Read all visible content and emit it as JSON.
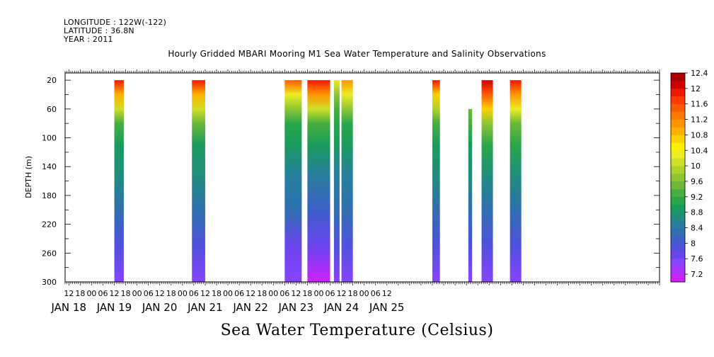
{
  "header": {
    "longitude": "LONGITUDE : 122W(-122)",
    "latitude": "LATITUDE : 36.8N",
    "year": "YEAR : 2011"
  },
  "chart_data": {
    "type": "heatmap",
    "title": "Hourly Gridded MBARI Mooring M1 Sea Water Temperature and Salinity Observations",
    "xlabel": "Sea Water Temperature (Celsius)",
    "ylabel": "DEPTH (m)",
    "x_unit": "hours since JAN 18 00:00",
    "xlim": [
      10,
      324
    ],
    "ylim": [
      300,
      10
    ],
    "y_ticks": [
      20,
      60,
      100,
      140,
      180,
      220,
      260,
      300
    ],
    "x_hour_ticks": [
      "12",
      "18",
      "00",
      "06",
      "12",
      "18",
      "00",
      "06",
      "12",
      "18",
      "00",
      "06",
      "12",
      "18",
      "00",
      "06",
      "12",
      "18",
      "00",
      "06",
      "12",
      "18",
      "00",
      "06",
      "12",
      "18",
      "00",
      "06",
      "12"
    ],
    "date_labels": [
      "JAN 18",
      "JAN 19",
      "JAN 20",
      "JAN 21",
      "JAN 22",
      "JAN 23",
      "JAN 24",
      "JAN 25"
    ],
    "colorbar": {
      "levels": [
        7.2,
        7.4,
        7.6,
        7.8,
        8.0,
        8.2,
        8.4,
        8.6,
        8.8,
        9.0,
        9.2,
        9.4,
        9.6,
        9.8,
        10.0,
        10.2,
        10.4,
        10.6,
        10.8,
        11.0,
        11.2,
        11.4,
        11.6,
        11.8,
        12.0,
        12.2,
        12.4,
        12.6
      ],
      "labels": [
        "7.2",
        "7.6",
        "8",
        "8.4",
        "8.8",
        "9.2",
        "9.6",
        "10",
        "10.4",
        "10.8",
        "11.2",
        "11.6",
        "12",
        "12.4"
      ],
      "colors": [
        "#cc22ff",
        "#aa33ff",
        "#8844ff",
        "#6a44ee",
        "#5050dd",
        "#3c5fc8",
        "#2f6fb0",
        "#27809b",
        "#1f8f7a",
        "#1a9b5e",
        "#2aa64a",
        "#48ae3e",
        "#6cb838",
        "#8ec534",
        "#b0d22c",
        "#d0df28",
        "#ecec22",
        "#fff000",
        "#ffd000",
        "#ffb000",
        "#ff9500",
        "#ff7800",
        "#ff5a00",
        "#ff3a00",
        "#f01800",
        "#d00000",
        "#a80000"
      ]
    },
    "series": [
      {
        "t_start": 132,
        "t_end": 134,
        "min_depth": 20,
        "profile": [
          {
            "d": 20,
            "v": 11.9
          },
          {
            "d": 40,
            "v": 11.0
          },
          {
            "d": 60,
            "v": 10.1
          },
          {
            "d": 80,
            "v": 9.4
          },
          {
            "d": 110,
            "v": 9.0
          },
          {
            "d": 150,
            "v": 8.8
          },
          {
            "d": 200,
            "v": 8.5
          },
          {
            "d": 250,
            "v": 8.0
          },
          {
            "d": 300,
            "v": 7.7
          }
        ]
      },
      {
        "t_start": 36,
        "t_end": 41,
        "min_depth": 20,
        "profile": [
          {
            "d": 20,
            "v": 12.0
          },
          {
            "d": 40,
            "v": 11.0
          },
          {
            "d": 60,
            "v": 10.2
          },
          {
            "d": 80,
            "v": 9.5
          },
          {
            "d": 110,
            "v": 9.1
          },
          {
            "d": 150,
            "v": 8.8
          },
          {
            "d": 200,
            "v": 8.5
          },
          {
            "d": 250,
            "v": 8.0
          },
          {
            "d": 300,
            "v": 7.7
          }
        ]
      },
      {
        "t_start": 77,
        "t_end": 84,
        "min_depth": 20,
        "profile": [
          {
            "d": 20,
            "v": 12.0
          },
          {
            "d": 40,
            "v": 11.1
          },
          {
            "d": 60,
            "v": 10.3
          },
          {
            "d": 80,
            "v": 9.6
          },
          {
            "d": 110,
            "v": 9.1
          },
          {
            "d": 150,
            "v": 8.8
          },
          {
            "d": 200,
            "v": 8.5
          },
          {
            "d": 250,
            "v": 8.0
          },
          {
            "d": 300,
            "v": 7.7
          }
        ]
      },
      {
        "t_start": 126,
        "t_end": 135,
        "min_depth": 20,
        "profile": [
          {
            "d": 20,
            "v": 11.6
          },
          {
            "d": 40,
            "v": 10.5
          },
          {
            "d": 60,
            "v": 9.8
          },
          {
            "d": 80,
            "v": 9.3
          },
          {
            "d": 110,
            "v": 9.0
          },
          {
            "d": 150,
            "v": 8.7
          },
          {
            "d": 200,
            "v": 8.4
          },
          {
            "d": 250,
            "v": 7.9
          },
          {
            "d": 300,
            "v": 7.6
          }
        ]
      },
      {
        "t_start": 138,
        "t_end": 150,
        "min_depth": 20,
        "profile": [
          {
            "d": 20,
            "v": 12.1
          },
          {
            "d": 40,
            "v": 11.3
          },
          {
            "d": 60,
            "v": 10.2
          },
          {
            "d": 80,
            "v": 9.5
          },
          {
            "d": 110,
            "v": 9.0
          },
          {
            "d": 150,
            "v": 8.6
          },
          {
            "d": 200,
            "v": 8.2
          },
          {
            "d": 250,
            "v": 7.8
          },
          {
            "d": 300,
            "v": 7.3
          }
        ]
      },
      {
        "t_start": 152,
        "t_end": 155,
        "min_depth": 20,
        "profile": [
          {
            "d": 20,
            "v": 10.5
          },
          {
            "d": 40,
            "v": 9.9
          },
          {
            "d": 60,
            "v": 9.5
          },
          {
            "d": 80,
            "v": 9.2
          },
          {
            "d": 110,
            "v": 9.0
          },
          {
            "d": 150,
            "v": 8.7
          },
          {
            "d": 200,
            "v": 8.4
          },
          {
            "d": 250,
            "v": 8.0
          },
          {
            "d": 300,
            "v": 7.6
          }
        ]
      },
      {
        "t_start": 156,
        "t_end": 162,
        "min_depth": 20,
        "profile": [
          {
            "d": 20,
            "v": 11.2
          },
          {
            "d": 40,
            "v": 10.4
          },
          {
            "d": 60,
            "v": 9.8
          },
          {
            "d": 80,
            "v": 9.3
          },
          {
            "d": 110,
            "v": 9.0
          },
          {
            "d": 150,
            "v": 8.7
          },
          {
            "d": 200,
            "v": 8.4
          },
          {
            "d": 250,
            "v": 8.0
          },
          {
            "d": 300,
            "v": 7.6
          }
        ]
      },
      {
        "t_start": 204,
        "t_end": 208,
        "min_depth": 20,
        "profile": [
          {
            "d": 20,
            "v": 12.0
          },
          {
            "d": 40,
            "v": 10.9
          },
          {
            "d": 60,
            "v": 10.1
          },
          {
            "d": 80,
            "v": 9.5
          },
          {
            "d": 110,
            "v": 9.0
          },
          {
            "d": 150,
            "v": 8.8
          },
          {
            "d": 200,
            "v": 8.5
          },
          {
            "d": 250,
            "v": 8.0
          },
          {
            "d": 300,
            "v": 7.7
          }
        ]
      },
      {
        "t_start": 223,
        "t_end": 225,
        "min_depth": 60,
        "profile": [
          {
            "d": 60,
            "v": 9.7
          },
          {
            "d": 80,
            "v": 9.4
          },
          {
            "d": 110,
            "v": 9.0
          },
          {
            "d": 150,
            "v": 8.8
          },
          {
            "d": 200,
            "v": 8.5
          },
          {
            "d": 250,
            "v": 8.0
          },
          {
            "d": 300,
            "v": 7.7
          }
        ]
      },
      {
        "t_start": 230,
        "t_end": 236,
        "min_depth": 20,
        "profile": [
          {
            "d": 20,
            "v": 12.2
          },
          {
            "d": 40,
            "v": 11.6
          },
          {
            "d": 60,
            "v": 10.8
          },
          {
            "d": 80,
            "v": 9.9
          },
          {
            "d": 110,
            "v": 9.2
          },
          {
            "d": 150,
            "v": 8.9
          },
          {
            "d": 200,
            "v": 8.5
          },
          {
            "d": 250,
            "v": 8.0
          },
          {
            "d": 300,
            "v": 7.7
          }
        ]
      },
      {
        "t_start": 245,
        "t_end": 251,
        "min_depth": 20,
        "profile": [
          {
            "d": 20,
            "v": 12.1
          },
          {
            "d": 40,
            "v": 11.3
          },
          {
            "d": 60,
            "v": 10.4
          },
          {
            "d": 80,
            "v": 9.7
          },
          {
            "d": 110,
            "v": 9.2
          },
          {
            "d": 150,
            "v": 8.9
          },
          {
            "d": 200,
            "v": 8.5
          },
          {
            "d": 250,
            "v": 8.0
          },
          {
            "d": 300,
            "v": 7.7
          }
        ]
      }
    ],
    "grid": false,
    "legend": "right colorbar"
  }
}
